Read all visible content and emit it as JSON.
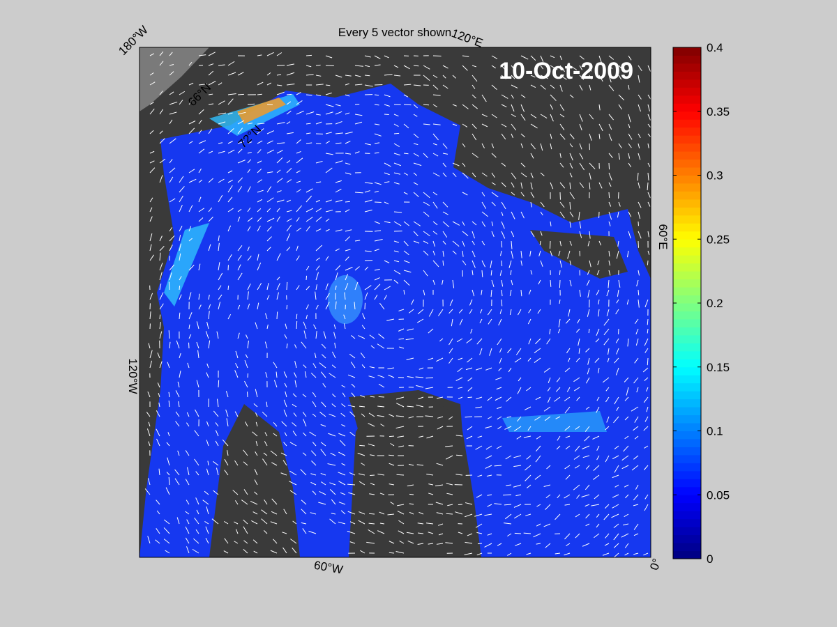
{
  "map": {
    "title": "Every 5 vector shown",
    "date_label": "10-Oct-2009",
    "graticule_labels": [
      "180°W",
      "120°E",
      "60°E",
      "0°",
      "60°W",
      "120°W",
      "66°N",
      "72°N"
    ],
    "colorbar": {
      "lim": [
        0,
        0.4
      ],
      "ticks": [
        0,
        0.05,
        0.1,
        0.15,
        0.2,
        0.25,
        0.3,
        0.35,
        0.4
      ]
    }
  }
}
